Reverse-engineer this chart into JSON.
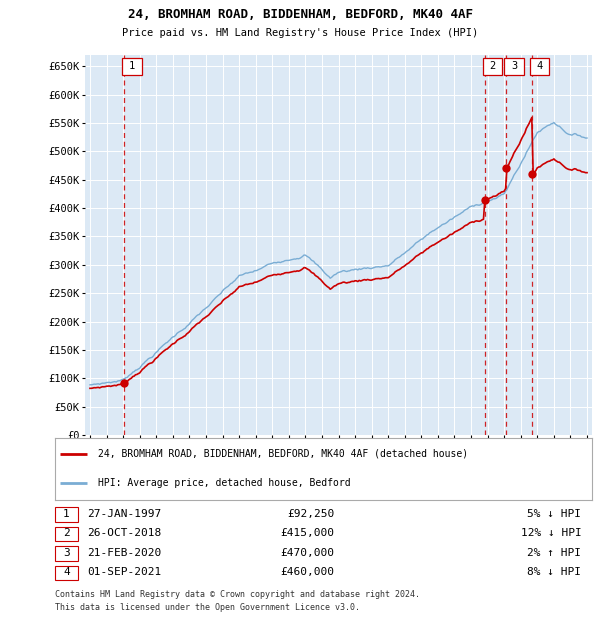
{
  "title_line1": "24, BROMHAM ROAD, BIDDENHAM, BEDFORD, MK40 4AF",
  "title_line2": "Price paid vs. HM Land Registry's House Price Index (HPI)",
  "ylabel_ticks": [
    "£0",
    "£50K",
    "£100K",
    "£150K",
    "£200K",
    "£250K",
    "£300K",
    "£350K",
    "£400K",
    "£450K",
    "£500K",
    "£550K",
    "£600K",
    "£650K"
  ],
  "ytick_vals": [
    0,
    50000,
    100000,
    150000,
    200000,
    250000,
    300000,
    350000,
    400000,
    450000,
    500000,
    550000,
    600000,
    650000
  ],
  "xlim_start": 1994.7,
  "xlim_end": 2025.3,
  "ylim_min": 0,
  "ylim_max": 670000,
  "background_color": "#dce9f5",
  "grid_color": "#ffffff",
  "hpi_color": "#7aadd4",
  "sale_color": "#cc0000",
  "transactions": [
    {
      "id": 1,
      "date_str": "27-JAN-1997",
      "year": 1997.07,
      "price": 92250,
      "pct": "5%",
      "dir": "↓"
    },
    {
      "id": 2,
      "date_str": "26-OCT-2018",
      "year": 2018.82,
      "price": 415000,
      "pct": "12%",
      "dir": "↓"
    },
    {
      "id": 3,
      "date_str": "21-FEB-2020",
      "year": 2020.13,
      "price": 470000,
      "pct": "2%",
      "dir": "↑"
    },
    {
      "id": 4,
      "date_str": "01-SEP-2021",
      "year": 2021.67,
      "price": 460000,
      "pct": "8%",
      "dir": "↓"
    }
  ],
  "legend_label_sale": "24, BROMHAM ROAD, BIDDENHAM, BEDFORD, MK40 4AF (detached house)",
  "legend_label_hpi": "HPI: Average price, detached house, Bedford",
  "footer_line1": "Contains HM Land Registry data © Crown copyright and database right 2024.",
  "footer_line2": "This data is licensed under the Open Government Licence v3.0.",
  "table_rows": [
    {
      "id": 1,
      "date": "27-JAN-1997",
      "price": "£92,250",
      "pct": "5% ↓ HPI"
    },
    {
      "id": 2,
      "date": "26-OCT-2018",
      "price": "£415,000",
      "pct": "12% ↓ HPI"
    },
    {
      "id": 3,
      "date": "21-FEB-2020",
      "price": "£470,000",
      "pct": "2% ↑ HPI"
    },
    {
      "id": 4,
      "date": "01-SEP-2021",
      "price": "£460,000",
      "pct": "8% ↓ HPI"
    }
  ]
}
